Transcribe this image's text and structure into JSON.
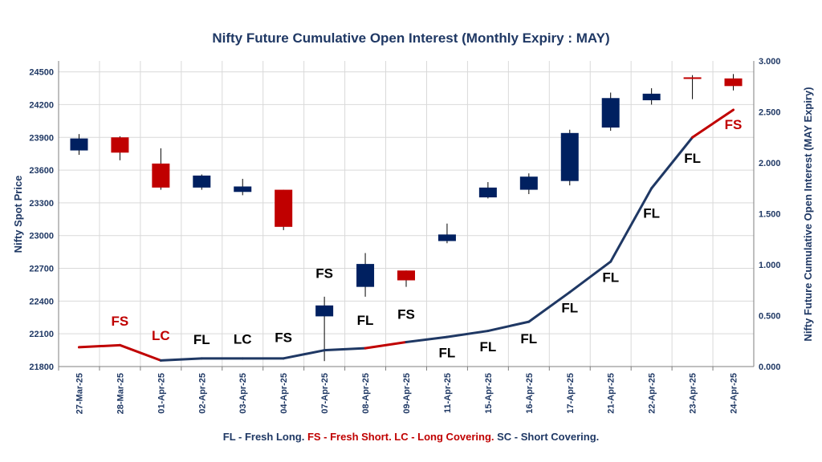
{
  "chart_data": {
    "type": "candlestick_line",
    "title": "Nifty Future Cumulative Open Interest (Monthly Expiry : MAY)",
    "ylabel_left": "Nifty Spot Price",
    "ylabel_right": "Nifty Future Cumulative Open Interest (MAY Expiry)",
    "ylim_left": [
      21800,
      24600
    ],
    "yticks_left": [
      "24500",
      "24200",
      "23900",
      "23600",
      "23300",
      "23000",
      "22700",
      "22400",
      "22100",
      "21800"
    ],
    "ylim_right": [
      0,
      3000
    ],
    "yticks_right": [
      "3.000",
      "2.500",
      "2.000",
      "1.500",
      "1.000",
      "0.500",
      "0.000"
    ],
    "categories": [
      "27-Mar-25",
      "28-Mar-25",
      "01-Apr-25",
      "02-Apr-25",
      "03-Apr-25",
      "04-Apr-25",
      "07-Apr-25",
      "08-Apr-25",
      "09-Apr-25",
      "11-Apr-25",
      "15-Apr-25",
      "16-Apr-25",
      "17-Apr-25",
      "21-Apr-25",
      "22-Apr-25",
      "23-Apr-25",
      "24-Apr-25"
    ],
    "candles": [
      {
        "open": 23780,
        "close": 23890,
        "high": 23930,
        "low": 23740
      },
      {
        "open": 23900,
        "close": 23760,
        "high": 23910,
        "low": 23690
      },
      {
        "open": 23660,
        "close": 23440,
        "high": 23800,
        "low": 23420
      },
      {
        "open": 23440,
        "close": 23550,
        "high": 23560,
        "low": 23420
      },
      {
        "open": 23400,
        "close": 23450,
        "high": 23520,
        "low": 23370
      },
      {
        "open": 23420,
        "close": 23080,
        "high": 23420,
        "low": 23050
      },
      {
        "open": 22260,
        "close": 22360,
        "high": 22440,
        "low": 21850
      },
      {
        "open": 22530,
        "close": 22740,
        "high": 22840,
        "low": 22440
      },
      {
        "open": 22680,
        "close": 22590,
        "high": 22680,
        "low": 22530
      },
      {
        "open": 22950,
        "close": 23010,
        "high": 23110,
        "low": 22930
      },
      {
        "open": 23350,
        "close": 23440,
        "high": 23490,
        "low": 23340
      },
      {
        "open": 23420,
        "close": 23540,
        "high": 23570,
        "low": 23380
      },
      {
        "open": 23500,
        "close": 23940,
        "high": 23970,
        "low": 23460
      },
      {
        "open": 23990,
        "close": 24260,
        "high": 24310,
        "low": 23960
      },
      {
        "open": 24240,
        "close": 24300,
        "high": 24350,
        "low": 24200
      },
      {
        "open": 24450,
        "close": 24440,
        "high": 24470,
        "low": 24250
      },
      {
        "open": 24440,
        "close": 24370,
        "high": 24480,
        "low": 24330
      }
    ],
    "open_interest": [
      190,
      210,
      60,
      80,
      80,
      80,
      160,
      180,
      240,
      290,
      350,
      440,
      730,
      1030,
      1750,
      2250,
      2520
    ],
    "oi_segment_colors": [
      "#c00000",
      "#c00000",
      "#1f3864",
      "#1f3864",
      "#1f3864",
      "#1f3864",
      "#1f3864",
      "#c00000",
      "#1f3864",
      "#1f3864",
      "#1f3864",
      "#1f3864",
      "#1f3864",
      "#1f3864",
      "#1f3864",
      "#c00000"
    ],
    "annotations": [
      {
        "text": "FS",
        "index": 1,
        "oi": 400,
        "color": "#c00000"
      },
      {
        "text": "LC",
        "index": 2,
        "oi": 260,
        "color": "#c00000"
      },
      {
        "text": "FL",
        "index": 3,
        "oi": 220,
        "color": "#000000"
      },
      {
        "text": "LC",
        "index": 4,
        "oi": 225,
        "color": "#000000"
      },
      {
        "text": "FS",
        "index": 5,
        "oi": 240,
        "color": "#000000"
      },
      {
        "text": "FS",
        "index": 6,
        "oi": 870,
        "color": "#000000"
      },
      {
        "text": "FL",
        "index": 7,
        "oi": 410,
        "color": "#000000"
      },
      {
        "text": "FS",
        "index": 8,
        "oi": 470,
        "color": "#000000"
      },
      {
        "text": "FL",
        "index": 9,
        "oi": 90,
        "color": "#000000"
      },
      {
        "text": "FL",
        "index": 10,
        "oi": 150,
        "color": "#000000"
      },
      {
        "text": "FL",
        "index": 11,
        "oi": 230,
        "color": "#000000"
      },
      {
        "text": "FL",
        "index": 12,
        "oi": 530,
        "color": "#000000"
      },
      {
        "text": "FL",
        "index": 13,
        "oi": 830,
        "color": "#000000"
      },
      {
        "text": "FL",
        "index": 14,
        "oi": 1460,
        "color": "#000000"
      },
      {
        "text": "FL",
        "index": 15,
        "oi": 2000,
        "color": "#000000"
      },
      {
        "text": "FS",
        "index": 16,
        "oi": 2330,
        "color": "#c00000"
      }
    ],
    "legend": [
      {
        "text": "FL - Fresh Long. ",
        "color": "#1f3864"
      },
      {
        "text": "FS - Fresh Short. ",
        "color": "#c00000"
      },
      {
        "text": "LC - Long Covering. ",
        "color": "#c00000"
      },
      {
        "text": " SC - Short Covering.",
        "color": "#1f3864"
      }
    ],
    "colors": {
      "up_candle": "#002060",
      "down_candle": "#c00000",
      "oi_blue": "#1f3864",
      "oi_red": "#c00000",
      "grid": "#d9d9d9",
      "axis_text": "#1f3864"
    }
  }
}
